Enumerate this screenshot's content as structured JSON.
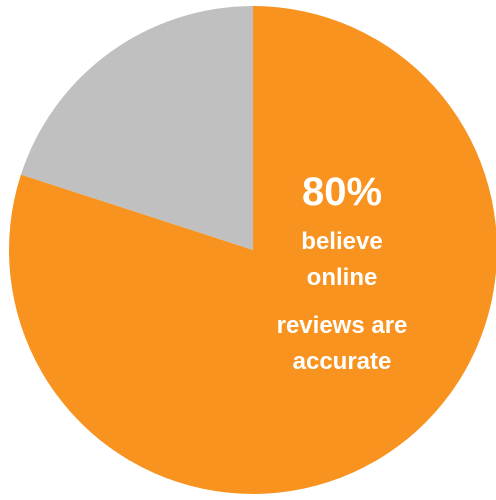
{
  "chart_data": {
    "type": "pie",
    "slices": [
      {
        "value": 80,
        "color": "#F7931E"
      },
      {
        "value": 20,
        "color": "#C0C0C0"
      }
    ],
    "start_angle_deg": 0,
    "direction": "clockwise",
    "annotation": {
      "value_label": "80%",
      "caption_lines": [
        "believe",
        "online",
        "reviews are",
        "accurate"
      ]
    }
  }
}
